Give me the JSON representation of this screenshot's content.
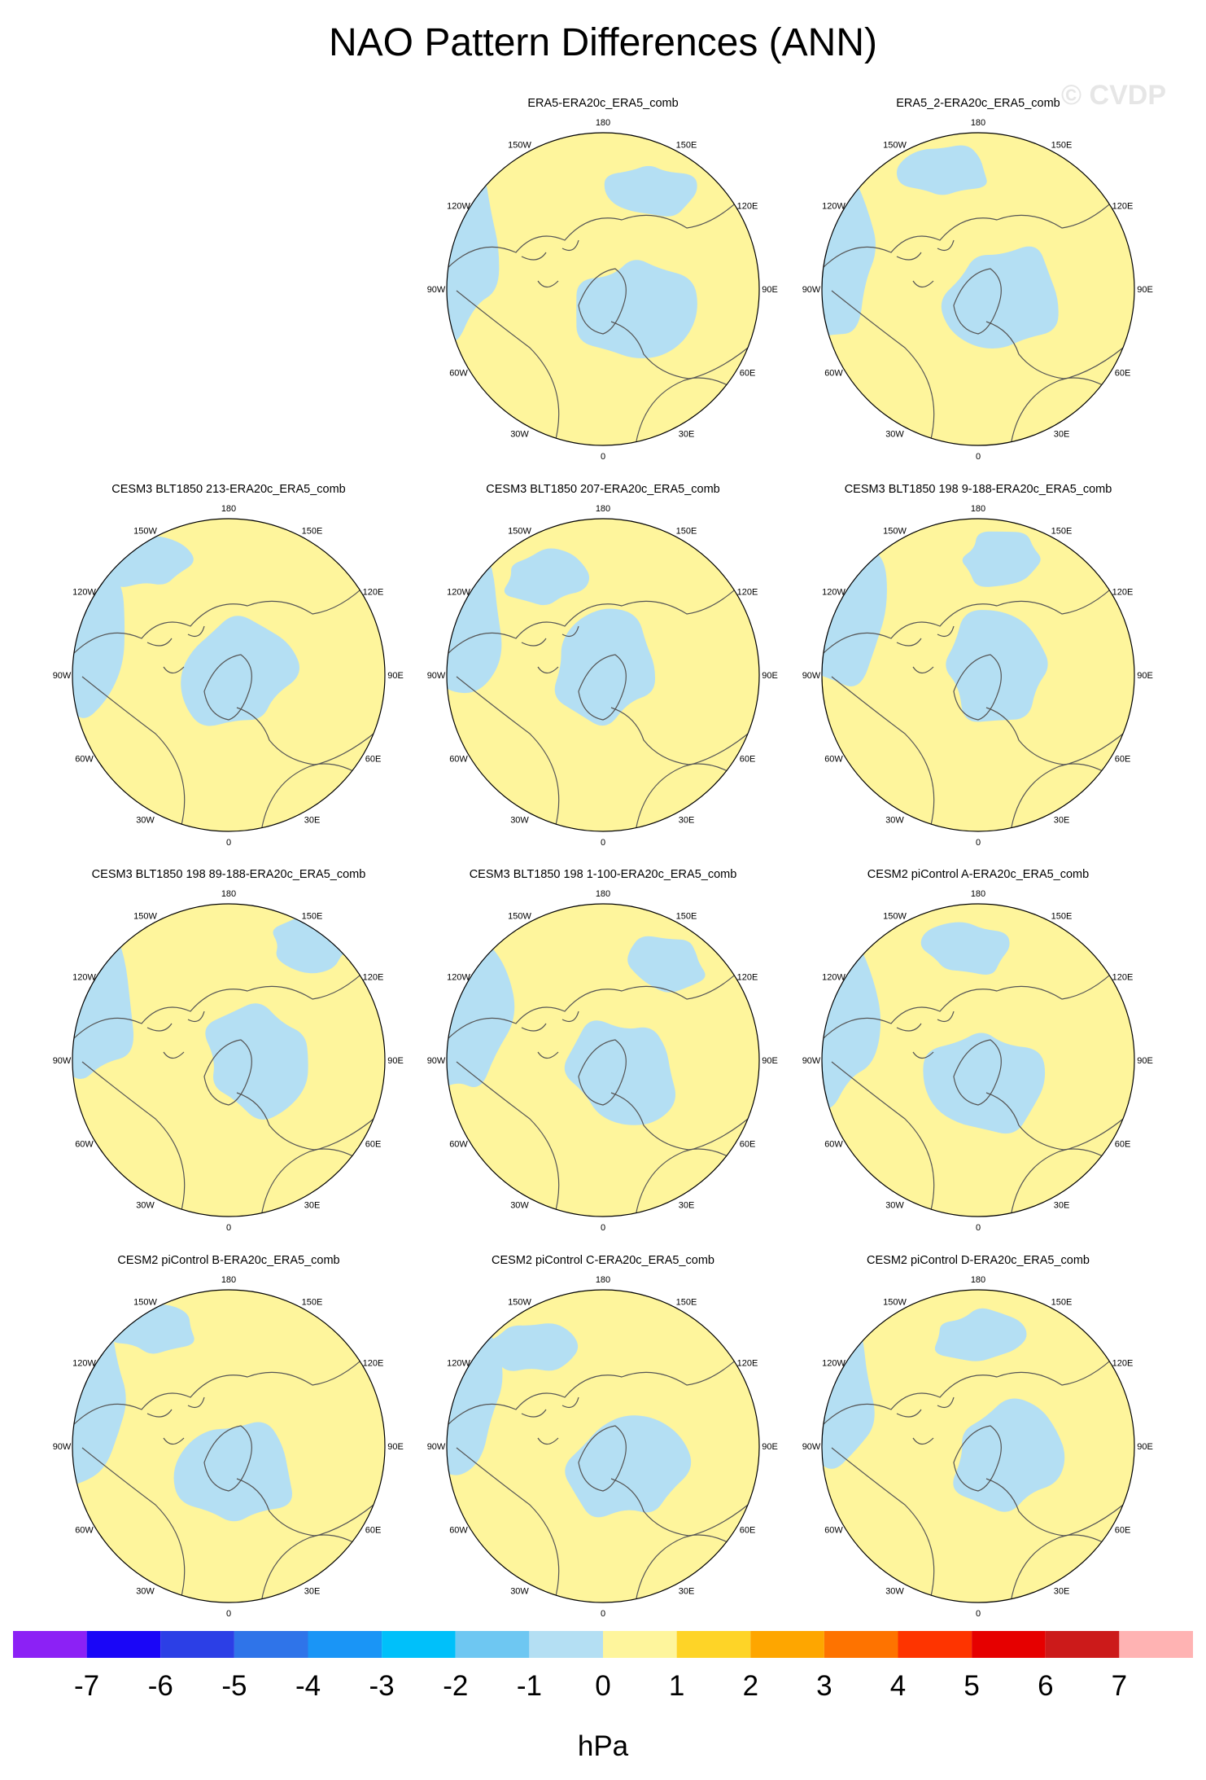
{
  "figure": {
    "title": "NAO Pattern Differences (ANN)",
    "watermark": "© CVDP",
    "unit": "hPa"
  },
  "lon_labels": [
    "180",
    "150E",
    "120E",
    "90E",
    "60E",
    "30E",
    "0",
    "30W",
    "60W",
    "90W",
    "120W",
    "150W"
  ],
  "panels": [
    {
      "title": "ERA5-ERA20c_ERA5_comb",
      "row": 0,
      "col": 1
    },
    {
      "title": "ERA5_2-ERA20c_ERA5_comb",
      "row": 0,
      "col": 2
    },
    {
      "title": "CESM3 BLT1850 213-ERA20c_ERA5_comb",
      "row": 1,
      "col": 0
    },
    {
      "title": "CESM3 BLT1850 207-ERA20c_ERA5_comb",
      "row": 1,
      "col": 1
    },
    {
      "title": "CESM3 BLT1850 198 9-188-ERA20c_ERA5_comb",
      "row": 1,
      "col": 2
    },
    {
      "title": "CESM3 BLT1850 198 89-188-ERA20c_ERA5_comb",
      "row": 2,
      "col": 0
    },
    {
      "title": "CESM3 BLT1850 198 1-100-ERA20c_ERA5_comb",
      "row": 2,
      "col": 1
    },
    {
      "title": "CESM2 piControl A-ERA20c_ERA5_comb",
      "row": 2,
      "col": 2
    },
    {
      "title": "CESM2 piControl B-ERA20c_ERA5_comb",
      "row": 3,
      "col": 0
    },
    {
      "title": "CESM2 piControl C-ERA20c_ERA5_comb",
      "row": 3,
      "col": 1
    },
    {
      "title": "CESM2 piControl D-ERA20c_ERA5_comb",
      "row": 3,
      "col": 2
    }
  ],
  "colorbar": {
    "colors": [
      "#8c21f5",
      "#1a06f7",
      "#2c3fe6",
      "#2f74e9",
      "#1a95f6",
      "#00c0fa",
      "#6ec7f2",
      "#b4dff3",
      "#fef59c",
      "#fed427",
      "#fea600",
      "#fe7300",
      "#fe3400",
      "#e60000",
      "#cc1a1a",
      "#ffb3b3"
    ],
    "labels": [
      "-7",
      "-6",
      "-5",
      "-4",
      "-3",
      "-2",
      "-1",
      "0",
      "1",
      "2",
      "3",
      "4",
      "5",
      "6",
      "7"
    ]
  },
  "colors": {
    "positive_fill": "#fef59c",
    "negative_fill": "#b4dff3",
    "coastline": "#555555"
  }
}
